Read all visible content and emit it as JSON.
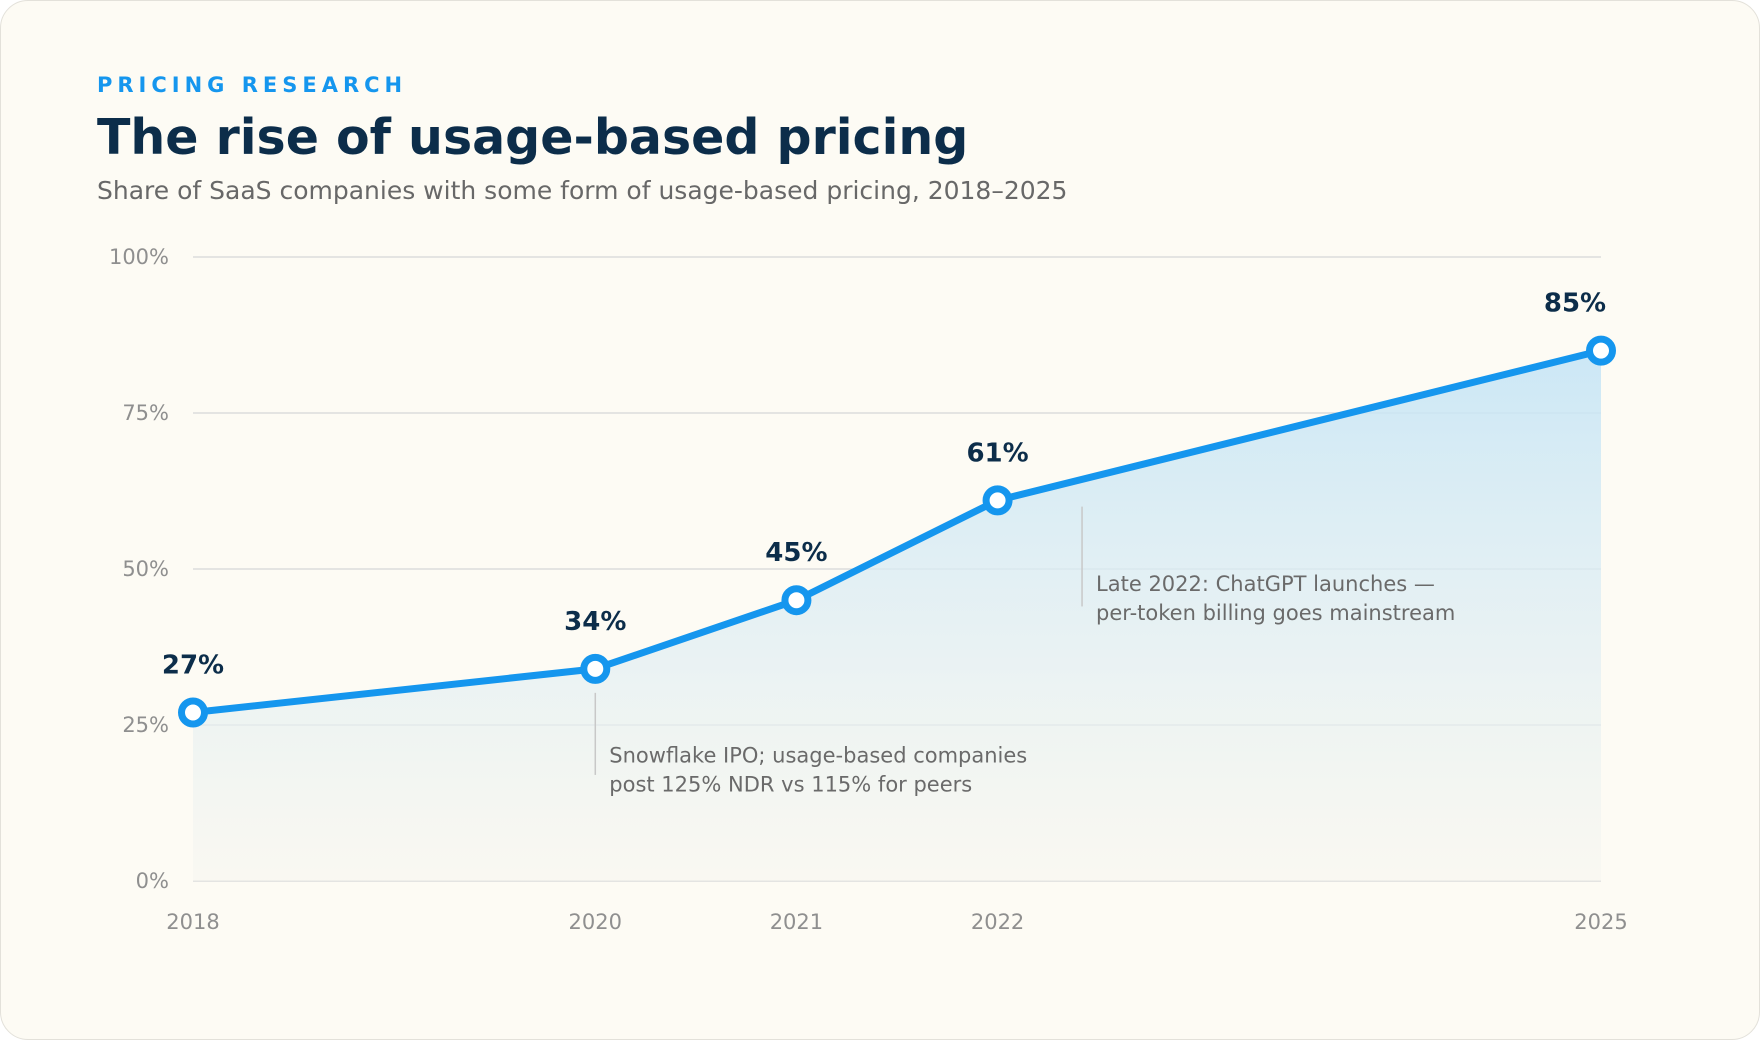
{
  "header": {
    "eyebrow": "PRICING RESEARCH",
    "title": "The rise of usage-based pricing",
    "subtitle": "Share of SaaS companies with some form of usage-based pricing, 2018–2025"
  },
  "colors": {
    "accent": "#1596ee",
    "title": "#0c2d4a",
    "background": "#fdfbf4",
    "grid": "#dcdcdc"
  },
  "chart_data": {
    "type": "area",
    "title": "The rise of usage-based pricing",
    "subtitle": "Share of SaaS companies with some form of usage-based pricing, 2018–2025",
    "xlabel": "",
    "ylabel": "",
    "x": [
      2018,
      2020,
      2021,
      2022,
      2025
    ],
    "series": [
      {
        "values": [
          27,
          34,
          45,
          61,
          85
        ]
      }
    ],
    "data_labels": [
      "27%",
      "34%",
      "45%",
      "61%",
      "85%"
    ],
    "x_ticks": [
      "2018",
      "2020",
      "2021",
      "2022",
      "2025"
    ],
    "y_ticks": [
      "0%",
      "25%",
      "50%",
      "75%",
      "100%"
    ],
    "ylim": [
      0,
      100
    ],
    "xlim": [
      2018,
      2025
    ],
    "grid": true,
    "annotations": [
      {
        "x": 2020,
        "lines": [
          "Snowflake IPO; usage-based companies",
          "post 125% NDR vs 115% for peers"
        ]
      },
      {
        "x": 2022.42,
        "lines": [
          "Late 2022: ChatGPT launches —",
          "per-token billing goes mainstream"
        ]
      }
    ]
  }
}
